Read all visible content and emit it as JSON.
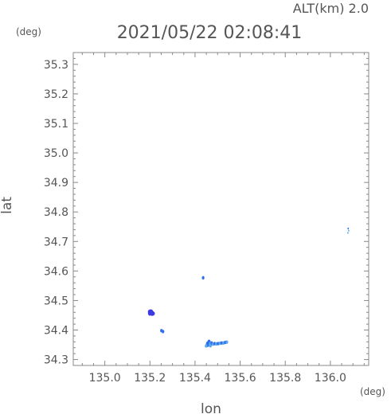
{
  "header": {
    "altitude_label": "ALT(km) 2.0",
    "datetime": "2021/05/22 02:08:41"
  },
  "chart_data": {
    "type": "scatter",
    "xlabel": "lon",
    "ylabel": "lat",
    "x_unit": "(deg)",
    "y_unit": "(deg)",
    "xlim": [
      134.86,
      136.17
    ],
    "ylim": [
      34.28,
      35.34
    ],
    "x_ticks": [
      135.0,
      135.2,
      135.4,
      135.6,
      135.8,
      136.0
    ],
    "x_tick_labels": [
      "135.0",
      "135.2",
      "135.4",
      "135.6",
      "135.8",
      "136.0"
    ],
    "y_ticks": [
      34.3,
      34.4,
      34.5,
      34.6,
      34.7,
      34.8,
      34.9,
      35.0,
      35.1,
      35.2,
      35.3
    ],
    "y_tick_labels": [
      "34.3",
      "34.4",
      "34.5",
      "34.6",
      "34.7",
      "34.8",
      "34.9",
      "35.0",
      "35.1",
      "35.2",
      "35.3"
    ],
    "grid": false,
    "colors": {
      "dark": "#3a3ae0",
      "mid": "#2f6fe8",
      "light": "#5aa8f0",
      "axis": "#888888"
    },
    "points": [
      {
        "x": 135.203,
        "y": 34.462,
        "shade": "dark",
        "size": "large"
      },
      {
        "x": 135.21,
        "y": 34.456,
        "shade": "dark",
        "size": "large"
      },
      {
        "x": 135.199,
        "y": 34.458,
        "shade": "dark",
        "size": "medium"
      },
      {
        "x": 135.251,
        "y": 34.398,
        "shade": "mid",
        "size": "small"
      },
      {
        "x": 135.258,
        "y": 34.395,
        "shade": "mid",
        "size": "small"
      },
      {
        "x": 135.436,
        "y": 34.577,
        "shade": "mid",
        "size": "small"
      },
      {
        "x": 135.456,
        "y": 34.352,
        "shade": "mid",
        "size": "medium"
      },
      {
        "x": 135.462,
        "y": 34.358,
        "shade": "mid",
        "size": "medium"
      },
      {
        "x": 135.468,
        "y": 34.35,
        "shade": "light",
        "size": "medium"
      },
      {
        "x": 135.474,
        "y": 34.356,
        "shade": "mid",
        "size": "small"
      },
      {
        "x": 135.48,
        "y": 34.352,
        "shade": "light",
        "size": "small"
      },
      {
        "x": 135.487,
        "y": 34.354,
        "shade": "mid",
        "size": "small"
      },
      {
        "x": 135.494,
        "y": 34.353,
        "shade": "light",
        "size": "small"
      },
      {
        "x": 135.502,
        "y": 34.354,
        "shade": "mid",
        "size": "small"
      },
      {
        "x": 135.51,
        "y": 34.355,
        "shade": "light",
        "size": "small"
      },
      {
        "x": 135.518,
        "y": 34.356,
        "shade": "mid",
        "size": "small"
      },
      {
        "x": 135.526,
        "y": 34.356,
        "shade": "light",
        "size": "small"
      },
      {
        "x": 135.534,
        "y": 34.358,
        "shade": "mid",
        "size": "small"
      },
      {
        "x": 135.541,
        "y": 34.359,
        "shade": "light",
        "size": "small"
      },
      {
        "x": 135.449,
        "y": 34.346,
        "shade": "light",
        "size": "small"
      },
      {
        "x": 136.079,
        "y": 34.744,
        "shade": "mid",
        "size": "tiny"
      },
      {
        "x": 136.081,
        "y": 34.737,
        "shade": "light",
        "size": "tiny"
      },
      {
        "x": 136.078,
        "y": 34.729,
        "shade": "light",
        "size": "tiny"
      }
    ]
  }
}
